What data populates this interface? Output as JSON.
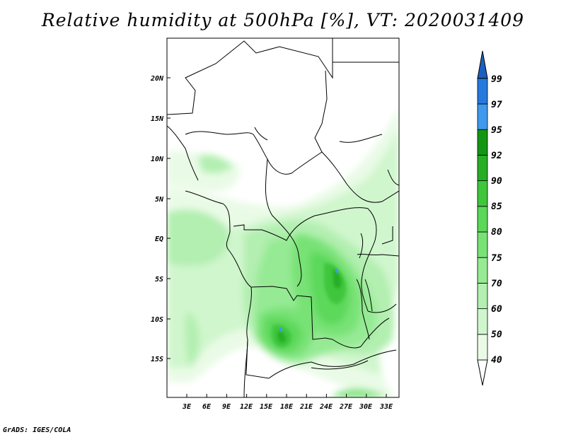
{
  "title": "Relative humidity at 500hPa [%], VT: 2020031409",
  "footer": "GrADS: IGES/COLA",
  "lat_labels": [
    "20N",
    "15N",
    "10N",
    "5N",
    "EQ",
    "5S",
    "10S",
    "15S"
  ],
  "lon_labels": [
    "3E",
    "6E",
    "9E",
    "12E",
    "15E",
    "18E",
    "21E",
    "24E",
    "27E",
    "30E",
    "33E"
  ],
  "colorbar": {
    "levels": [
      "40",
      "50",
      "60",
      "70",
      "75",
      "80",
      "85",
      "90",
      "92",
      "95",
      "97",
      "99"
    ],
    "colors": [
      "#ffffff",
      "#e9fbe6",
      "#d0f6cd",
      "#b2efb0",
      "#96ea94",
      "#78e276",
      "#5bd85a",
      "#3fc63d",
      "#27ae25",
      "#129612",
      "#4199ee",
      "#2779de",
      "#1d5fc1"
    ]
  }
}
